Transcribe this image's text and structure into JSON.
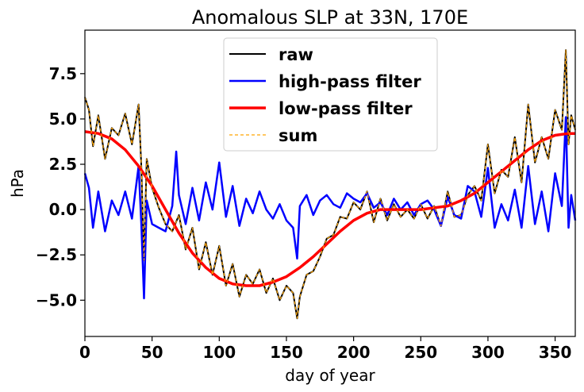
{
  "chart_data": {
    "type": "line",
    "title": "Anomalous SLP at 33N, 170E",
    "xlabel": "day of year",
    "ylabel": "hPa",
    "xlim": [
      0,
      365
    ],
    "ylim": [
      -7.0,
      9.9
    ],
    "x_ticks": [
      0,
      50,
      100,
      150,
      200,
      250,
      300,
      350
    ],
    "x_tick_labels": [
      "0",
      "50",
      "100",
      "150",
      "200",
      "250",
      "300",
      "350"
    ],
    "y_ticks": [
      -5.0,
      -2.5,
      0.0,
      2.5,
      5.0,
      7.5
    ],
    "y_tick_labels": [
      "−5.0",
      "−2.5",
      "0.0",
      "2.5",
      "5.0",
      "7.5"
    ],
    "grid": false,
    "legend_position": "top-center",
    "series": [
      {
        "name": "raw",
        "color": "#000000",
        "style": "solid",
        "x": [
          0,
          3,
          6,
          10,
          15,
          20,
          25,
          30,
          35,
          40,
          42,
          44,
          46,
          50,
          55,
          60,
          65,
          70,
          75,
          80,
          85,
          90,
          95,
          100,
          105,
          110,
          115,
          120,
          125,
          130,
          135,
          140,
          145,
          150,
          155,
          158,
          160,
          165,
          170,
          175,
          180,
          185,
          190,
          195,
          200,
          205,
          210,
          215,
          220,
          225,
          230,
          235,
          240,
          245,
          250,
          255,
          260,
          265,
          270,
          275,
          280,
          285,
          290,
          295,
          300,
          305,
          310,
          315,
          320,
          325,
          330,
          335,
          340,
          345,
          350,
          355,
          358,
          360,
          362,
          365
        ],
        "y": [
          6.2,
          5.5,
          3.5,
          5.2,
          2.8,
          4.5,
          4.1,
          5.3,
          3.6,
          5.8,
          2.4,
          -2.8,
          2.8,
          1.2,
          0.1,
          -0.8,
          -1.2,
          -0.3,
          -2.2,
          -1.0,
          -3.3,
          -1.8,
          -3.6,
          -2.0,
          -4.2,
          -3.0,
          -4.8,
          -3.6,
          -4.1,
          -3.3,
          -4.6,
          -3.8,
          -5.0,
          -4.2,
          -4.6,
          -6.0,
          -4.8,
          -3.6,
          -3.4,
          -2.6,
          -1.6,
          -1.4,
          -0.4,
          -0.5,
          0.4,
          0.0,
          1.0,
          -0.7,
          0.6,
          -0.6,
          0.3,
          -0.4,
          0.0,
          -0.5,
          0.3,
          -0.5,
          0.2,
          -0.9,
          1.0,
          -0.4,
          -0.3,
          0.8,
          1.3,
          0.5,
          3.6,
          0.9,
          2.2,
          1.8,
          4.0,
          1.5,
          5.8,
          2.6,
          4.0,
          2.8,
          5.5,
          4.4,
          8.8,
          3.6,
          5.2,
          4.4
        ]
      },
      {
        "name": "high-pass filter",
        "color": "#0000ff",
        "style": "solid",
        "x": [
          0,
          3,
          6,
          10,
          15,
          20,
          25,
          30,
          35,
          40,
          42,
          44,
          46,
          50,
          55,
          60,
          65,
          68,
          70,
          75,
          80,
          85,
          90,
          95,
          100,
          105,
          110,
          115,
          120,
          125,
          130,
          135,
          140,
          145,
          150,
          155,
          158,
          160,
          165,
          170,
          175,
          180,
          185,
          190,
          195,
          200,
          205,
          210,
          215,
          220,
          225,
          230,
          235,
          240,
          245,
          250,
          255,
          260,
          265,
          270,
          275,
          280,
          285,
          290,
          295,
          300,
          305,
          310,
          315,
          320,
          325,
          330,
          335,
          340,
          345,
          350,
          355,
          358,
          360,
          362,
          365
        ],
        "y": [
          2.0,
          1.2,
          -1.0,
          1.0,
          -1.2,
          0.5,
          -0.3,
          1.0,
          -0.5,
          2.4,
          -0.8,
          -4.9,
          0.5,
          -0.8,
          -1.0,
          -1.2,
          0.2,
          3.2,
          0.8,
          -0.8,
          1.2,
          -0.6,
          1.5,
          0.0,
          2.6,
          -0.4,
          1.3,
          -0.9,
          0.6,
          -0.2,
          1.0,
          0.0,
          -0.5,
          0.3,
          -0.6,
          -1.0,
          -2.7,
          0.2,
          0.8,
          -0.3,
          0.5,
          0.8,
          0.3,
          0.1,
          0.9,
          0.6,
          0.4,
          0.9,
          0.1,
          0.4,
          -0.3,
          0.6,
          0.0,
          0.4,
          -0.3,
          0.3,
          0.5,
          0.0,
          -0.9,
          0.7,
          -0.3,
          -0.5,
          1.3,
          1.0,
          -0.4,
          2.3,
          -1.0,
          0.3,
          -0.6,
          1.1,
          -1.0,
          2.4,
          -0.8,
          1.0,
          -1.2,
          2.0,
          0.2,
          5.1,
          -1.0,
          0.8,
          -0.6
        ]
      },
      {
        "name": "low-pass filter",
        "color": "#ff0000",
        "style": "solid",
        "x": [
          0,
          10,
          20,
          30,
          40,
          50,
          60,
          70,
          80,
          90,
          100,
          110,
          120,
          130,
          140,
          150,
          160,
          170,
          180,
          190,
          200,
          210,
          220,
          230,
          240,
          250,
          260,
          270,
          280,
          290,
          300,
          310,
          320,
          330,
          340,
          350,
          360,
          365
        ],
        "y": [
          4.3,
          4.2,
          3.9,
          3.3,
          2.4,
          1.3,
          0.0,
          -1.3,
          -2.4,
          -3.2,
          -3.8,
          -4.1,
          -4.2,
          -4.2,
          -4.0,
          -3.7,
          -3.2,
          -2.6,
          -1.9,
          -1.2,
          -0.6,
          -0.2,
          0.0,
          0.0,
          0.0,
          0.0,
          0.1,
          0.2,
          0.5,
          0.9,
          1.5,
          2.1,
          2.7,
          3.3,
          3.8,
          4.1,
          4.2,
          4.2
        ]
      },
      {
        "name": "sum",
        "color": "#ffa500",
        "style": "dashed",
        "x": [
          0,
          3,
          6,
          10,
          15,
          20,
          25,
          30,
          35,
          40,
          42,
          44,
          46,
          50,
          55,
          60,
          65,
          70,
          75,
          80,
          85,
          90,
          95,
          100,
          105,
          110,
          115,
          120,
          125,
          130,
          135,
          140,
          145,
          150,
          155,
          158,
          160,
          165,
          170,
          175,
          180,
          185,
          190,
          195,
          200,
          205,
          210,
          215,
          220,
          225,
          230,
          235,
          240,
          245,
          250,
          255,
          260,
          265,
          270,
          275,
          280,
          285,
          290,
          295,
          300,
          305,
          310,
          315,
          320,
          325,
          330,
          335,
          340,
          345,
          350,
          355,
          358,
          360,
          362,
          365
        ],
        "y": [
          6.2,
          5.5,
          3.5,
          5.2,
          2.8,
          4.5,
          4.1,
          5.3,
          3.6,
          5.8,
          2.4,
          -2.8,
          2.8,
          1.2,
          0.1,
          -0.8,
          -1.2,
          -0.3,
          -2.2,
          -1.0,
          -3.3,
          -1.8,
          -3.6,
          -2.0,
          -4.2,
          -3.0,
          -4.8,
          -3.6,
          -4.1,
          -3.3,
          -4.6,
          -3.8,
          -5.0,
          -4.2,
          -4.6,
          -6.0,
          -4.8,
          -3.6,
          -3.4,
          -2.6,
          -1.6,
          -1.4,
          -0.4,
          -0.5,
          0.4,
          0.0,
          1.0,
          -0.7,
          0.6,
          -0.6,
          0.3,
          -0.4,
          0.0,
          -0.5,
          0.3,
          -0.5,
          0.2,
          -0.9,
          1.0,
          -0.4,
          -0.3,
          0.8,
          1.3,
          0.5,
          3.6,
          0.9,
          2.2,
          1.8,
          4.0,
          1.5,
          5.8,
          2.6,
          4.0,
          2.8,
          5.5,
          4.4,
          8.8,
          3.6,
          5.2,
          4.4
        ]
      }
    ]
  }
}
